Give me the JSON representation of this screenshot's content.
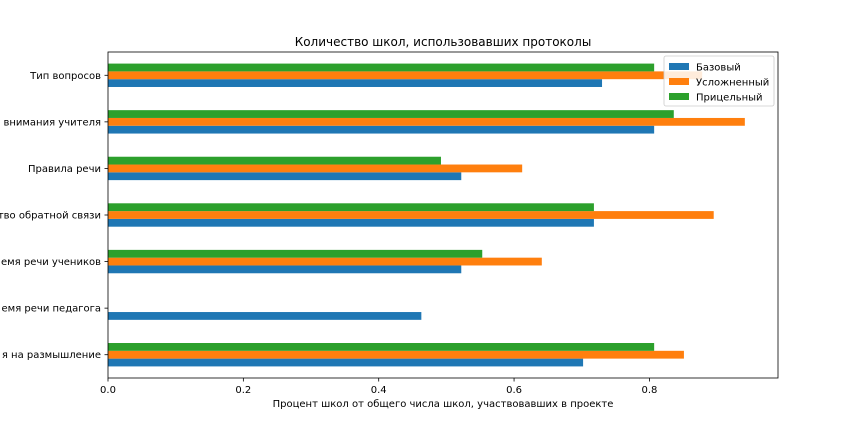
{
  "chart_data": {
    "type": "bar",
    "orientation": "horizontal",
    "title": "Количество школ, использовавших протоколы",
    "xlabel": "Процент школ от общего числа школ, участвовавших в проекте",
    "ylabel": "",
    "xlim": [
      0,
      0.99
    ],
    "xticks": [
      "0.0",
      "0.2",
      "0.4",
      "0.6",
      "0.8"
    ],
    "xtick_values": [
      0,
      0.2,
      0.4,
      0.6,
      0.8
    ],
    "grid": false,
    "legend_position": "top-right",
    "categories": [
      "Тип вопросов",
      "внимания учителя",
      "Правила речи",
      "тво обратной связи",
      "емя речи учеников",
      "емя речи педагога",
      "я на размышление"
    ],
    "series": [
      {
        "name": "Базовый",
        "color": "#1f77b4",
        "values": [
          0.73,
          0.807,
          0.522,
          0.718,
          0.522,
          0.463,
          0.702
        ]
      },
      {
        "name": "Усложненный",
        "color": "#ff7f0e",
        "values": [
          0.878,
          0.941,
          0.612,
          0.895,
          0.641,
          0,
          0.851
        ]
      },
      {
        "name": "Прицельный",
        "color": "#2ca02c",
        "values": [
          0.807,
          0.836,
          0.492,
          0.718,
          0.553,
          0,
          0.807
        ]
      }
    ]
  }
}
